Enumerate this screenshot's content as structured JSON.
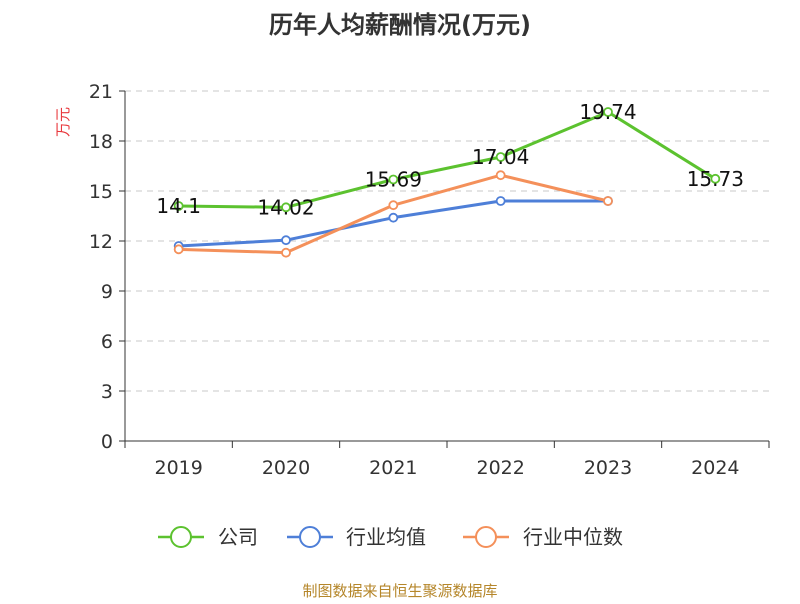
{
  "chart_data": {
    "type": "line",
    "title": "历年人均薪酬情况(万元)",
    "ylabel": "万元",
    "xlabel": "",
    "categories": [
      "2019",
      "2020",
      "2021",
      "2022",
      "2023",
      "2024"
    ],
    "y_ticks": [
      "0",
      "3",
      "6",
      "9",
      "12",
      "15",
      "18",
      "21"
    ],
    "ylim": [
      0,
      21
    ],
    "grid": true,
    "legend_position": "bottom",
    "series": [
      {
        "name": "公司",
        "color": "#5cc22f",
        "values": [
          14.1,
          14.02,
          15.69,
          17.04,
          19.74,
          15.73
        ],
        "labels": [
          "14.1",
          "14.02",
          "15.69",
          "17.04",
          "19.74",
          "15.73"
        ]
      },
      {
        "name": "行业均值",
        "color": "#4e7fd8",
        "values": [
          11.7,
          12.05,
          13.4,
          14.4,
          14.4,
          null
        ]
      },
      {
        "name": "行业中位数",
        "color": "#f4905a",
        "values": [
          11.5,
          11.3,
          14.15,
          15.95,
          14.4,
          null
        ]
      }
    ]
  },
  "ylabel_color": "#e8383d",
  "source": {
    "text": "制图数据来自恒生聚源数据库",
    "color": "#b5862a"
  }
}
